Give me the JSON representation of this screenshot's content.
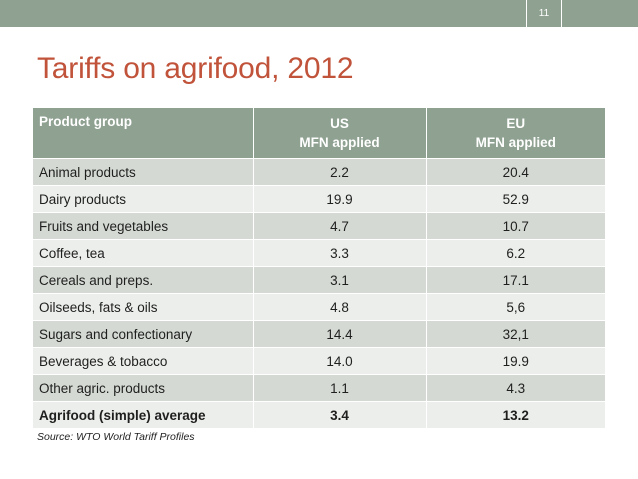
{
  "slide_number": "11",
  "title": "Tariffs on agrifood, 2012",
  "table": {
    "header": {
      "col1": "Product group",
      "col2_line1": "US",
      "col2_line2": "MFN applied",
      "col3_line1": "EU",
      "col3_line2": "MFN applied"
    },
    "rows": [
      {
        "product": "Animal products",
        "us": "2.2",
        "eu": "20.4"
      },
      {
        "product": "Dairy products",
        "us": "19.9",
        "eu": "52.9"
      },
      {
        "product": "Fruits and vegetables",
        "us": "4.7",
        "eu": "10.7"
      },
      {
        "product": "Coffee, tea",
        "us": "3.3",
        "eu": "6.2"
      },
      {
        "product": "Cereals and preps.",
        "us": "3.1",
        "eu": "17.1"
      },
      {
        "product": "Oilseeds, fats & oils",
        "us": "4.8",
        "eu": "5,6"
      },
      {
        "product": "Sugars and confectionary",
        "us": "14.4",
        "eu": "32,1"
      },
      {
        "product": "Beverages & tobacco",
        "us": "14.0",
        "eu": "19.9"
      },
      {
        "product": "Other agric. products",
        "us": "1.1",
        "eu": "4.3"
      }
    ],
    "total": {
      "product": "Agrifood (simple) average",
      "us": "3.4",
      "eu": "13.2"
    }
  },
  "source": "Source: WTO World Tariff Profiles",
  "colors": {
    "accent_band": "#8fa191",
    "title": "#c0533a",
    "row_dark": "#d4dad3",
    "row_light": "#ebeeea"
  }
}
